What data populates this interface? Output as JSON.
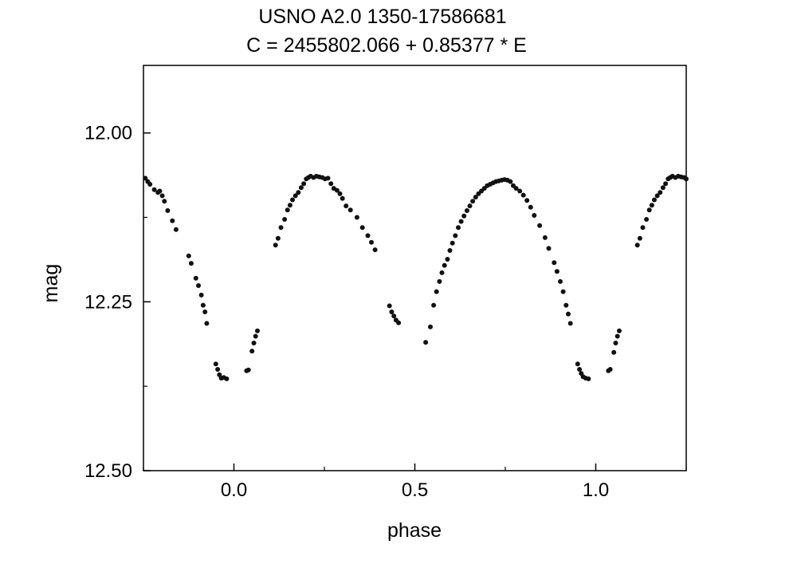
{
  "chart_data": {
    "type": "scatter",
    "title": "USNO A2.0 1350-17586681",
    "subtitle": "C = 2455802.066 + 0.85377 * E",
    "xlabel": "phase",
    "ylabel": "mag",
    "xlim": [
      -0.25,
      1.25
    ],
    "ylim": [
      12.5,
      11.9
    ],
    "y_inverted": true,
    "x_ticks": [
      {
        "value": 0.0,
        "label": "0.0"
      },
      {
        "value": 0.5,
        "label": "0.5"
      },
      {
        "value": 1.0,
        "label": "1.0"
      }
    ],
    "y_ticks": [
      {
        "value": 12.0,
        "label": "12.00"
      },
      {
        "value": 12.25,
        "label": "12.25"
      },
      {
        "value": 12.5,
        "label": "12.50"
      }
    ],
    "x_minor_ticks": [
      -0.25,
      0.25,
      0.75,
      1.25
    ],
    "y_minor_ticks": [
      12.125,
      12.375
    ],
    "grid": false,
    "legend": "none",
    "marker_color": "#111111",
    "series": [
      {
        "values": [
          [
            -0.245,
            12.067
          ],
          [
            -0.238,
            12.072
          ],
          [
            -0.232,
            12.076
          ],
          [
            -0.22,
            12.084
          ],
          [
            -0.21,
            12.088
          ],
          [
            -0.205,
            12.086
          ],
          [
            -0.198,
            12.093
          ],
          [
            -0.192,
            12.101
          ],
          [
            -0.183,
            12.115
          ],
          [
            -0.17,
            12.13
          ],
          [
            -0.16,
            12.143
          ],
          [
            -0.125,
            12.182
          ],
          [
            -0.118,
            12.193
          ],
          [
            -0.105,
            12.215
          ],
          [
            -0.098,
            12.226
          ],
          [
            -0.09,
            12.24
          ],
          [
            -0.085,
            12.255
          ],
          [
            -0.08,
            12.265
          ],
          [
            -0.075,
            12.282
          ],
          [
            -0.05,
            12.342
          ],
          [
            -0.045,
            12.35
          ],
          [
            -0.04,
            12.358
          ],
          [
            -0.035,
            12.363
          ],
          [
            -0.028,
            12.362
          ],
          [
            -0.02,
            12.364
          ],
          [
            0.035,
            12.352
          ],
          [
            0.04,
            12.351
          ],
          [
            0.05,
            12.323
          ],
          [
            0.055,
            12.311
          ],
          [
            0.06,
            12.301
          ],
          [
            0.065,
            12.293
          ],
          [
            0.115,
            12.166
          ],
          [
            0.122,
            12.156
          ],
          [
            0.13,
            12.14
          ],
          [
            0.14,
            12.128
          ],
          [
            0.148,
            12.114
          ],
          [
            0.155,
            12.107
          ],
          [
            0.162,
            12.099
          ],
          [
            0.17,
            12.093
          ],
          [
            0.178,
            12.088
          ],
          [
            0.186,
            12.081
          ],
          [
            0.193,
            12.075
          ],
          [
            0.2,
            12.068
          ],
          [
            0.206,
            12.066
          ],
          [
            0.212,
            12.064
          ],
          [
            0.22,
            12.066
          ],
          [
            0.228,
            12.064
          ],
          [
            0.236,
            12.065
          ],
          [
            0.244,
            12.066
          ],
          [
            0.252,
            12.068
          ],
          [
            0.26,
            12.067
          ],
          [
            0.268,
            12.075
          ],
          [
            0.276,
            12.082
          ],
          [
            0.285,
            12.085
          ],
          [
            0.293,
            12.09
          ],
          [
            0.3,
            12.097
          ],
          [
            0.31,
            12.108
          ],
          [
            0.322,
            12.114
          ],
          [
            0.34,
            12.125
          ],
          [
            0.355,
            12.14
          ],
          [
            0.37,
            12.152
          ],
          [
            0.38,
            12.162
          ],
          [
            0.39,
            12.173
          ],
          [
            0.43,
            12.256
          ],
          [
            0.436,
            12.265
          ],
          [
            0.442,
            12.271
          ],
          [
            0.448,
            12.277
          ],
          [
            0.455,
            12.281
          ],
          [
            0.53,
            12.31
          ],
          [
            0.543,
            12.287
          ],
          [
            0.552,
            12.255
          ],
          [
            0.56,
            12.235
          ],
          [
            0.568,
            12.22
          ],
          [
            0.575,
            12.207
          ],
          [
            0.582,
            12.196
          ],
          [
            0.59,
            12.187
          ],
          [
            0.597,
            12.174
          ],
          [
            0.604,
            12.163
          ],
          [
            0.612,
            12.152
          ],
          [
            0.62,
            12.14
          ],
          [
            0.628,
            12.131
          ],
          [
            0.636,
            12.123
          ],
          [
            0.644,
            12.115
          ],
          [
            0.652,
            12.108
          ],
          [
            0.66,
            12.101
          ],
          [
            0.668,
            12.095
          ],
          [
            0.676,
            12.09
          ],
          [
            0.684,
            12.086
          ],
          [
            0.692,
            12.082
          ],
          [
            0.7,
            12.078
          ],
          [
            0.708,
            12.076
          ],
          [
            0.716,
            12.074
          ],
          [
            0.724,
            12.072
          ],
          [
            0.732,
            12.071
          ],
          [
            0.74,
            12.07
          ],
          [
            0.748,
            12.069
          ],
          [
            0.756,
            12.07
          ],
          [
            0.764,
            12.072
          ],
          [
            0.772,
            12.078
          ],
          [
            0.78,
            12.082
          ],
          [
            0.79,
            12.086
          ],
          [
            0.8,
            12.092
          ],
          [
            0.81,
            12.1
          ],
          [
            0.82,
            12.11
          ],
          [
            0.83,
            12.122
          ],
          [
            0.845,
            12.137
          ],
          [
            0.86,
            12.155
          ],
          [
            0.87,
            12.171
          ],
          [
            0.885,
            12.192
          ],
          [
            0.893,
            12.205
          ],
          [
            0.902,
            12.22
          ],
          [
            0.91,
            12.235
          ],
          [
            0.918,
            12.255
          ],
          [
            0.924,
            12.268
          ],
          [
            0.93,
            12.282
          ],
          [
            0.95,
            12.342
          ],
          [
            0.955,
            12.35
          ],
          [
            0.96,
            12.356
          ],
          [
            0.965,
            12.361
          ],
          [
            0.972,
            12.363
          ],
          [
            0.98,
            12.364
          ],
          [
            1.035,
            12.352
          ],
          [
            1.04,
            12.35
          ],
          [
            1.05,
            12.325
          ],
          [
            1.055,
            12.311
          ],
          [
            1.06,
            12.301
          ],
          [
            1.065,
            12.293
          ],
          [
            1.115,
            12.166
          ],
          [
            1.122,
            12.156
          ],
          [
            1.13,
            12.14
          ],
          [
            1.14,
            12.128
          ],
          [
            1.148,
            12.114
          ],
          [
            1.155,
            12.107
          ],
          [
            1.162,
            12.099
          ],
          [
            1.17,
            12.093
          ],
          [
            1.178,
            12.088
          ],
          [
            1.186,
            12.081
          ],
          [
            1.193,
            12.075
          ],
          [
            1.2,
            12.068
          ],
          [
            1.206,
            12.066
          ],
          [
            1.212,
            12.064
          ],
          [
            1.22,
            12.066
          ],
          [
            1.228,
            12.064
          ],
          [
            1.236,
            12.065
          ],
          [
            1.244,
            12.066
          ],
          [
            1.25,
            12.068
          ]
        ]
      }
    ]
  }
}
